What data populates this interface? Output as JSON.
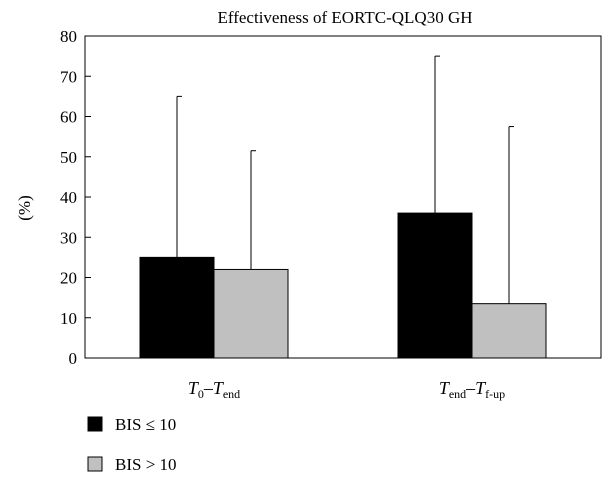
{
  "chart_data": {
    "type": "bar",
    "title": "Effectiveness of EORTC-QLQ30 GH",
    "ylabel": "(%)",
    "xlabel": "",
    "ylim": [
      0,
      80
    ],
    "yticks": [
      0,
      10,
      20,
      30,
      40,
      50,
      60,
      70,
      80
    ],
    "error_bars": "upper",
    "legend_position": "bottom-left",
    "categories": [
      {
        "base": "T",
        "sub1": "0",
        "sep": "–",
        "base2": "T",
        "sub2": "end"
      },
      {
        "base": "T",
        "sub1": "end",
        "sep": "–",
        "base2": "T",
        "sub2": "f-up"
      }
    ],
    "series": [
      {
        "name": "BIS ≤ 10",
        "color": "#000000",
        "values": [
          25,
          36
        ],
        "error_upper": [
          65,
          75
        ]
      },
      {
        "name": "BIS > 10",
        "color": "#c0c0c0",
        "values": [
          22,
          13.5
        ],
        "error_upper": [
          51.5,
          57.5
        ]
      }
    ]
  }
}
